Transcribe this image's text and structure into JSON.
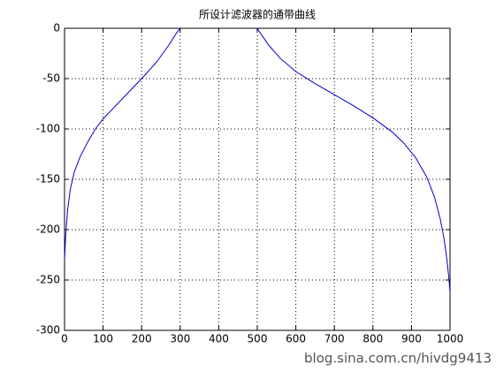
{
  "chart_data": {
    "type": "line",
    "title": "所设计滤波器的通带曲线",
    "x": [
      0,
      3,
      8,
      15,
      25,
      40,
      60,
      80,
      100,
      130,
      160,
      200,
      240,
      270,
      290,
      300,
      400,
      500,
      510,
      530,
      560,
      600,
      650,
      700,
      750,
      800,
      850,
      880,
      910,
      940,
      960,
      975,
      985,
      992,
      997,
      1000
    ],
    "series": [
      {
        "name": null,
        "color": "#0000cc",
        "values": [
          -230,
          -205,
          -180,
          -160,
          -143,
          -128,
          -113,
          -100,
          -90,
          -78,
          -66,
          -50,
          -33,
          -17,
          -5,
          0,
          null,
          0,
          -6,
          -17,
          -30,
          -43,
          -55,
          -66,
          -77,
          -89,
          -103,
          -114,
          -128,
          -148,
          -168,
          -190,
          -210,
          -230,
          -248,
          -262
        ]
      }
    ],
    "xlim": [
      0,
      1000
    ],
    "xticks": [
      0,
      100,
      200,
      300,
      400,
      500,
      600,
      700,
      800,
      900,
      1000
    ],
    "ylim": [
      -300,
      0
    ],
    "yticks": [
      0,
      -50,
      -100,
      -150,
      -200,
      -250,
      -300
    ],
    "grid": true
  },
  "watermark": "blog.sina.com.cn/hivdg9413"
}
